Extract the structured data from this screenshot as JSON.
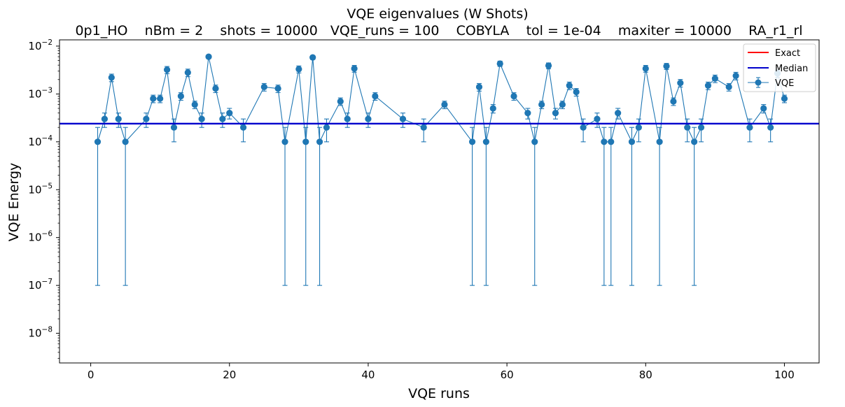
{
  "chart_data": {
    "type": "scatter",
    "title": "VQE eigenvalues (W Shots)",
    "subtitle": "0p1_HO    nBm = 2    shots = 10000   VQE_runs = 100    COBYLA    tol = 1e-04    maxiter = 10000    RA_r1_rl",
    "xlabel": "VQE runs",
    "ylabel": "VQE Energy",
    "xlim": [
      -4.5,
      105
    ],
    "ylim": [
      2.4e-09,
      0.0135
    ],
    "yscale": "log",
    "grid": false,
    "legend_position": "top-right",
    "x_ticks": [
      0,
      20,
      40,
      60,
      80,
      100
    ],
    "y_ticks": [
      {
        "value": 1e-08,
        "mant": "10",
        "exp": "−8"
      },
      {
        "value": 1e-07,
        "mant": "10",
        "exp": "−7"
      },
      {
        "value": 1e-06,
        "mant": "10",
        "exp": "−6"
      },
      {
        "value": 1e-05,
        "mant": "10",
        "exp": "−5"
      },
      {
        "value": 0.0001,
        "mant": "10",
        "exp": "−4"
      },
      {
        "value": 0.001,
        "mant": "10",
        "exp": "−3"
      },
      {
        "value": 0.01,
        "mant": "10",
        "exp": "−2"
      }
    ],
    "legend": [
      "Exact",
      "Median",
      "VQE"
    ],
    "exact": {
      "name": "Exact",
      "color": "#ff0000",
      "value": 0
    },
    "median": {
      "name": "Median",
      "color": "#0000cc",
      "value": 0.00024
    },
    "vqe": {
      "name": "VQE",
      "color": "#1f77b4",
      "x": [
        1,
        2,
        3,
        4,
        5,
        8,
        9,
        10,
        11,
        12,
        13,
        14,
        15,
        16,
        17,
        18,
        19,
        20,
        22,
        25,
        27,
        28,
        30,
        31,
        32,
        33,
        34,
        36,
        37,
        38,
        40,
        41,
        45,
        48,
        51,
        55,
        56,
        57,
        58,
        59,
        61,
        63,
        64,
        65,
        66,
        67,
        68,
        69,
        70,
        71,
        73,
        74,
        75,
        76,
        78,
        79,
        80,
        82,
        83,
        84,
        85,
        86,
        87,
        88,
        89,
        90,
        92,
        93,
        95,
        97,
        98,
        99,
        100
      ],
      "y": [
        0.0001,
        0.0003,
        0.0022,
        0.0003,
        0.0001,
        0.0003,
        0.0008,
        0.0008,
        0.0032,
        0.0002,
        0.0009,
        0.0028,
        0.0006,
        0.0003,
        0.006,
        0.0013,
        0.0003,
        0.0004,
        0.0002,
        0.0014,
        0.0013,
        0.0001,
        0.0033,
        0.0001,
        0.0058,
        0.0001,
        0.0002,
        0.0007,
        0.0003,
        0.0034,
        0.0003,
        0.0009,
        0.0003,
        0.0002,
        0.0006,
        0.0001,
        0.0014,
        0.0001,
        0.0005,
        0.0043,
        0.0009,
        0.0004,
        0.0001,
        0.0006,
        0.0039,
        0.0004,
        0.0006,
        0.0015,
        0.0011,
        0.0002,
        0.0003,
        0.0001,
        0.0001,
        0.0004,
        0.0001,
        0.0002,
        0.0034,
        0.0001,
        0.0038,
        0.0007,
        0.0017,
        0.0002,
        0.0001,
        0.0002,
        0.0015,
        0.0021,
        0.0014,
        0.0024,
        0.0002,
        0.0005,
        0.0002,
        0.0027,
        0.0008
      ]
    }
  }
}
